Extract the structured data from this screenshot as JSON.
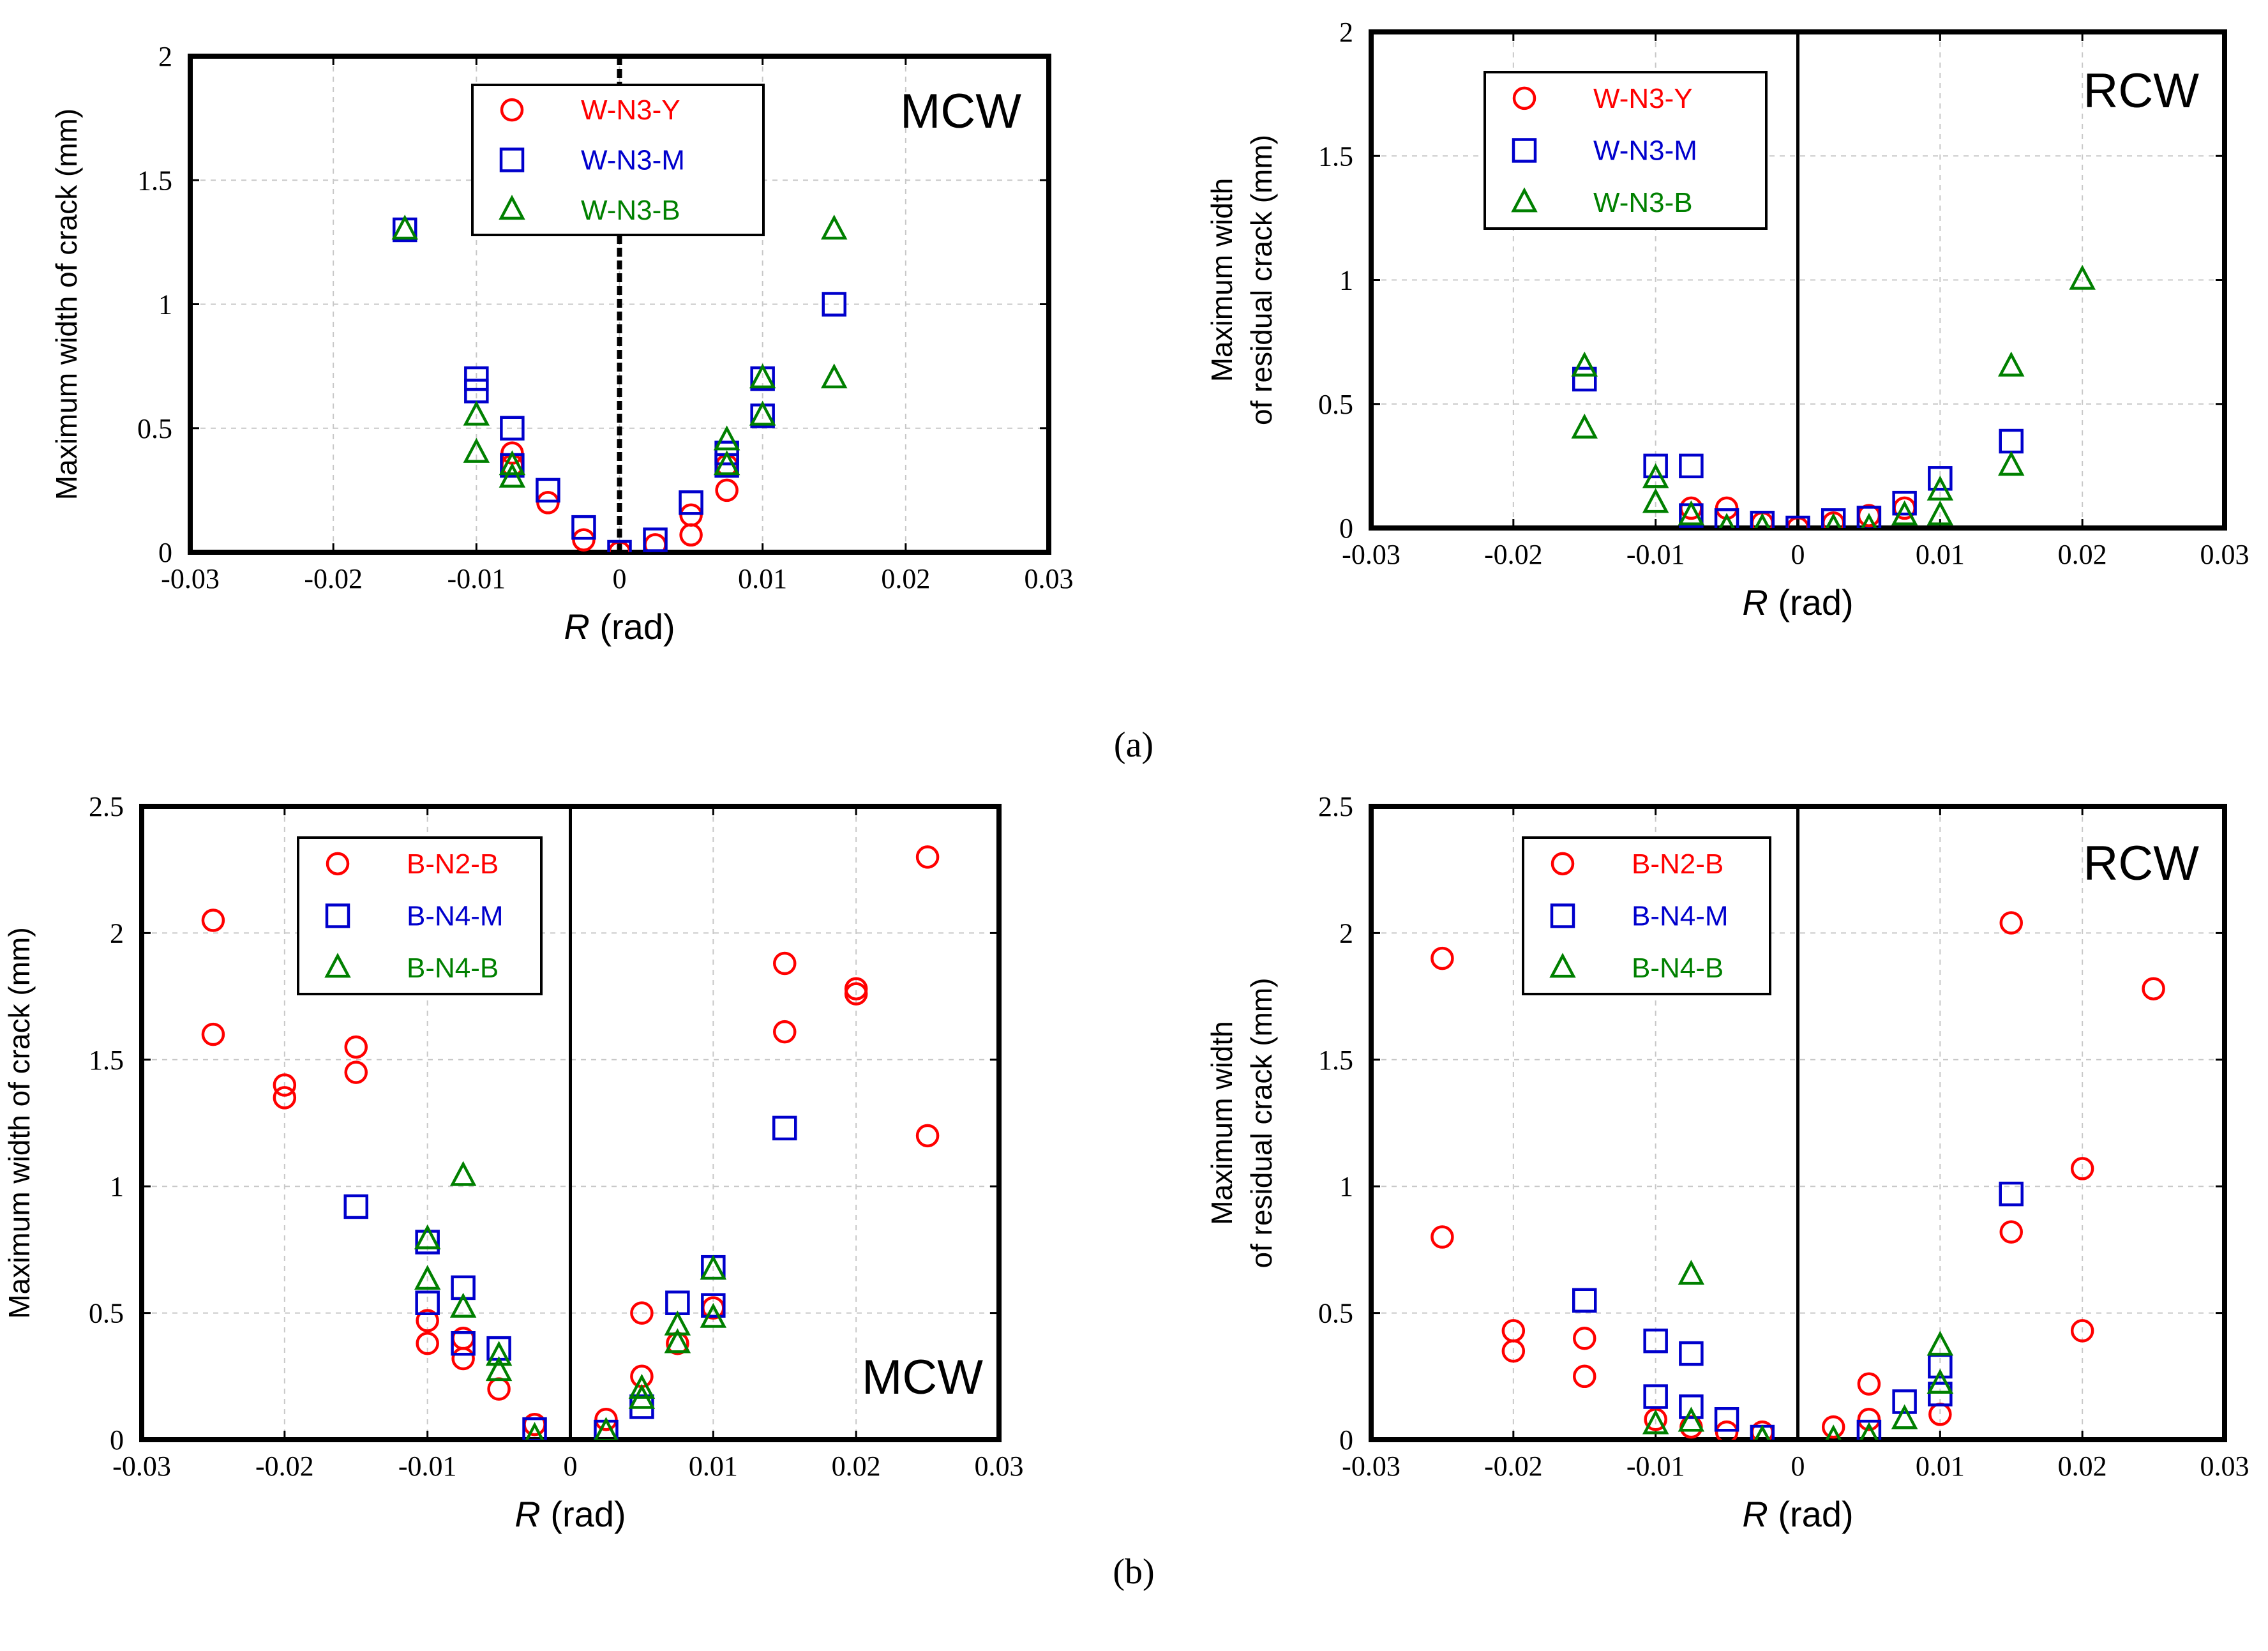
{
  "figure": {
    "captions": [
      "(a)",
      "(b)"
    ]
  },
  "colors": {
    "red": "#ff0000",
    "blue": "#0000cc",
    "green": "#008000",
    "grid": "#c8c8c8"
  },
  "chart_data": [
    {
      "id": "a-mcw",
      "type": "scatter",
      "tag": "MCW",
      "xlabel_italic": "R",
      "xlabel_rest": " (rad)",
      "ylabel": [
        "Maximum width of crack (mm)"
      ],
      "xlim": [
        -0.03,
        0.03
      ],
      "ylim": [
        0,
        2
      ],
      "xticks": [
        "-0.03",
        "-0.02",
        "-0.01",
        "0",
        "0.01",
        "0.02",
        "0.03"
      ],
      "yticks": [
        "0",
        "0.5",
        "1",
        "1.5",
        "2"
      ],
      "zero_line": "dashed",
      "series": [
        {
          "name": "W-N3-Y",
          "marker": "circle",
          "color": "red",
          "x": [
            -0.0075,
            -0.0075,
            -0.005,
            -0.0025,
            0,
            0.0025,
            0.005,
            0.005,
            0.0075,
            0.0075
          ],
          "y": [
            0.4,
            0.35,
            0.2,
            0.05,
            0,
            0.03,
            0.07,
            0.15,
            0.25,
            0.35
          ]
        },
        {
          "name": "W-N3-M",
          "marker": "square",
          "color": "blue",
          "x": [
            -0.015,
            -0.01,
            -0.01,
            -0.0075,
            -0.0075,
            -0.005,
            -0.0025,
            0,
            0.0025,
            0.005,
            0.0075,
            0.0075,
            0.01,
            0.01,
            0.015
          ],
          "y": [
            1.3,
            0.7,
            0.65,
            0.5,
            0.35,
            0.25,
            0.1,
            0,
            0.05,
            0.2,
            0.35,
            0.4,
            0.55,
            0.7,
            1.0
          ]
        },
        {
          "name": "W-N3-B",
          "marker": "triangle",
          "color": "green",
          "x": [
            -0.015,
            -0.01,
            -0.01,
            -0.0075,
            -0.0075,
            0.0075,
            0.0075,
            0.01,
            0.01,
            0.015,
            0.015
          ],
          "y": [
            1.3,
            0.55,
            0.4,
            0.35,
            0.3,
            0.35,
            0.45,
            0.55,
            0.7,
            0.7,
            1.3
          ]
        }
      ]
    },
    {
      "id": "a-rcw",
      "type": "scatter",
      "tag": "RCW",
      "xlabel_italic": "R",
      "xlabel_rest": " (rad)",
      "ylabel": [
        "Maximum width",
        "of residual crack (mm)"
      ],
      "xlim": [
        -0.03,
        0.03
      ],
      "ylim": [
        0,
        2
      ],
      "xticks": [
        "-0.03",
        "-0.02",
        "-0.01",
        "0",
        "0.01",
        "0.02",
        "0.03"
      ],
      "yticks": [
        "0",
        "0.5",
        "1",
        "1.5",
        "2"
      ],
      "zero_line": "solid",
      "series": [
        {
          "name": "W-N3-Y",
          "marker": "circle",
          "color": "red",
          "x": [
            -0.0075,
            -0.005,
            -0.0025,
            0,
            0.0025,
            0.005,
            0.0075
          ],
          "y": [
            0.08,
            0.08,
            0.02,
            0,
            0.02,
            0.05,
            0.08
          ]
        },
        {
          "name": "W-N3-M",
          "marker": "square",
          "color": "blue",
          "x": [
            -0.015,
            -0.01,
            -0.0075,
            -0.0075,
            -0.005,
            -0.0025,
            0,
            0.0025,
            0.005,
            0.0075,
            0.01,
            0.015
          ],
          "y": [
            0.6,
            0.25,
            0.25,
            0.05,
            0.03,
            0.02,
            0,
            0.03,
            0.04,
            0.1,
            0.2,
            0.35
          ]
        },
        {
          "name": "W-N3-B",
          "marker": "triangle",
          "color": "green",
          "x": [
            -0.015,
            -0.015,
            -0.01,
            -0.01,
            -0.0075,
            -0.005,
            -0.0025,
            0.0025,
            0.005,
            0.0075,
            0.01,
            0.01,
            0.015,
            0.015,
            0.02
          ],
          "y": [
            0.65,
            0.4,
            0.2,
            0.1,
            0.05,
            0,
            0,
            0,
            0,
            0.05,
            0.15,
            0.05,
            0.65,
            0.25,
            1.0
          ]
        }
      ]
    },
    {
      "id": "b-mcw",
      "type": "scatter",
      "tag": "MCW",
      "xlabel_italic": "R",
      "xlabel_rest": " (rad)",
      "ylabel": [
        "Maximum width of crack (mm)"
      ],
      "xlim": [
        -0.03,
        0.03
      ],
      "ylim": [
        0,
        2.5
      ],
      "xticks": [
        "-0.03",
        "-0.02",
        "-0.01",
        "0",
        "0.01",
        "0.02",
        "0.03"
      ],
      "yticks": [
        "0",
        "0.5",
        "1",
        "1.5",
        "2",
        "2.5"
      ],
      "zero_line": "solid",
      "series": [
        {
          "name": "B-N2-B",
          "marker": "circle",
          "color": "red",
          "x": [
            -0.025,
            -0.025,
            -0.02,
            -0.02,
            -0.015,
            -0.015,
            -0.01,
            -0.01,
            -0.0075,
            -0.0075,
            -0.005,
            -0.0025,
            0.0025,
            0.005,
            0.005,
            0.0075,
            0.01,
            0.015,
            0.015,
            0.02,
            0.02,
            0.025,
            0.025
          ],
          "y": [
            2.05,
            1.6,
            1.4,
            1.35,
            1.55,
            1.45,
            0.47,
            0.38,
            0.4,
            0.32,
            0.2,
            0.06,
            0.08,
            0.5,
            0.25,
            0.38,
            0.52,
            1.88,
            1.61,
            1.78,
            1.76,
            2.3,
            1.2
          ]
        },
        {
          "name": "B-N4-M",
          "marker": "square",
          "color": "blue",
          "x": [
            -0.015,
            -0.01,
            -0.01,
            -0.0075,
            -0.0075,
            -0.005,
            -0.0025,
            0.0025,
            0.005,
            0.0075,
            0.01,
            0.01,
            0.015
          ],
          "y": [
            0.92,
            0.78,
            0.54,
            0.6,
            0.38,
            0.36,
            0.04,
            0.03,
            0.13,
            0.54,
            0.68,
            0.53,
            1.23
          ]
        },
        {
          "name": "B-N4-B",
          "marker": "triangle",
          "color": "green",
          "x": [
            -0.01,
            -0.01,
            -0.0075,
            -0.0075,
            -0.005,
            -0.005,
            -0.0025,
            0.0025,
            0.005,
            0.005,
            0.0075,
            0.0075,
            0.01,
            0.01
          ],
          "y": [
            0.79,
            0.63,
            1.04,
            0.52,
            0.33,
            0.27,
            0.01,
            0.03,
            0.2,
            0.16,
            0.45,
            0.38,
            0.67,
            0.48
          ]
        }
      ]
    },
    {
      "id": "b-rcw",
      "type": "scatter",
      "tag": "RCW",
      "xlabel_italic": "R",
      "xlabel_rest": " (rad)",
      "ylabel": [
        "Maximum width",
        "of residual crack (mm)"
      ],
      "xlim": [
        -0.03,
        0.03
      ],
      "ylim": [
        0,
        2.5
      ],
      "xticks": [
        "-0.03",
        "-0.02",
        "-0.01",
        "0",
        "0.01",
        "0.02",
        "0.03"
      ],
      "yticks": [
        "0",
        "0.5",
        "1",
        "1.5",
        "2",
        "2.5"
      ],
      "zero_line": "solid",
      "series": [
        {
          "name": "B-N2-B",
          "marker": "circle",
          "color": "red",
          "x": [
            -0.025,
            -0.025,
            -0.02,
            -0.02,
            -0.015,
            -0.015,
            -0.01,
            -0.0075,
            -0.005,
            -0.0025,
            0.0025,
            0.005,
            0.005,
            0.01,
            0.015,
            0.015,
            0.02,
            0.02,
            0.025
          ],
          "y": [
            1.9,
            0.8,
            0.43,
            0.35,
            0.4,
            0.25,
            0.08,
            0.05,
            0.03,
            0.03,
            0.05,
            0.08,
            0.22,
            0.1,
            2.04,
            0.82,
            1.07,
            0.43,
            1.78
          ]
        },
        {
          "name": "B-N4-M",
          "marker": "square",
          "color": "blue",
          "x": [
            -0.015,
            -0.01,
            -0.01,
            -0.0075,
            -0.0075,
            -0.005,
            -0.0025,
            0.005,
            0.0075,
            0.01,
            0.01,
            0.015
          ],
          "y": [
            0.55,
            0.39,
            0.17,
            0.34,
            0.13,
            0.08,
            0.01,
            0.03,
            0.15,
            0.29,
            0.18,
            0.97
          ]
        },
        {
          "name": "B-N4-B",
          "marker": "triangle",
          "color": "green",
          "x": [
            -0.01,
            -0.0075,
            -0.0075,
            -0.0025,
            0.0025,
            0.005,
            0.0075,
            0.01,
            0.01
          ],
          "y": [
            0.06,
            0.65,
            0.07,
            0,
            0,
            0.01,
            0.08,
            0.37,
            0.22
          ]
        }
      ]
    }
  ]
}
